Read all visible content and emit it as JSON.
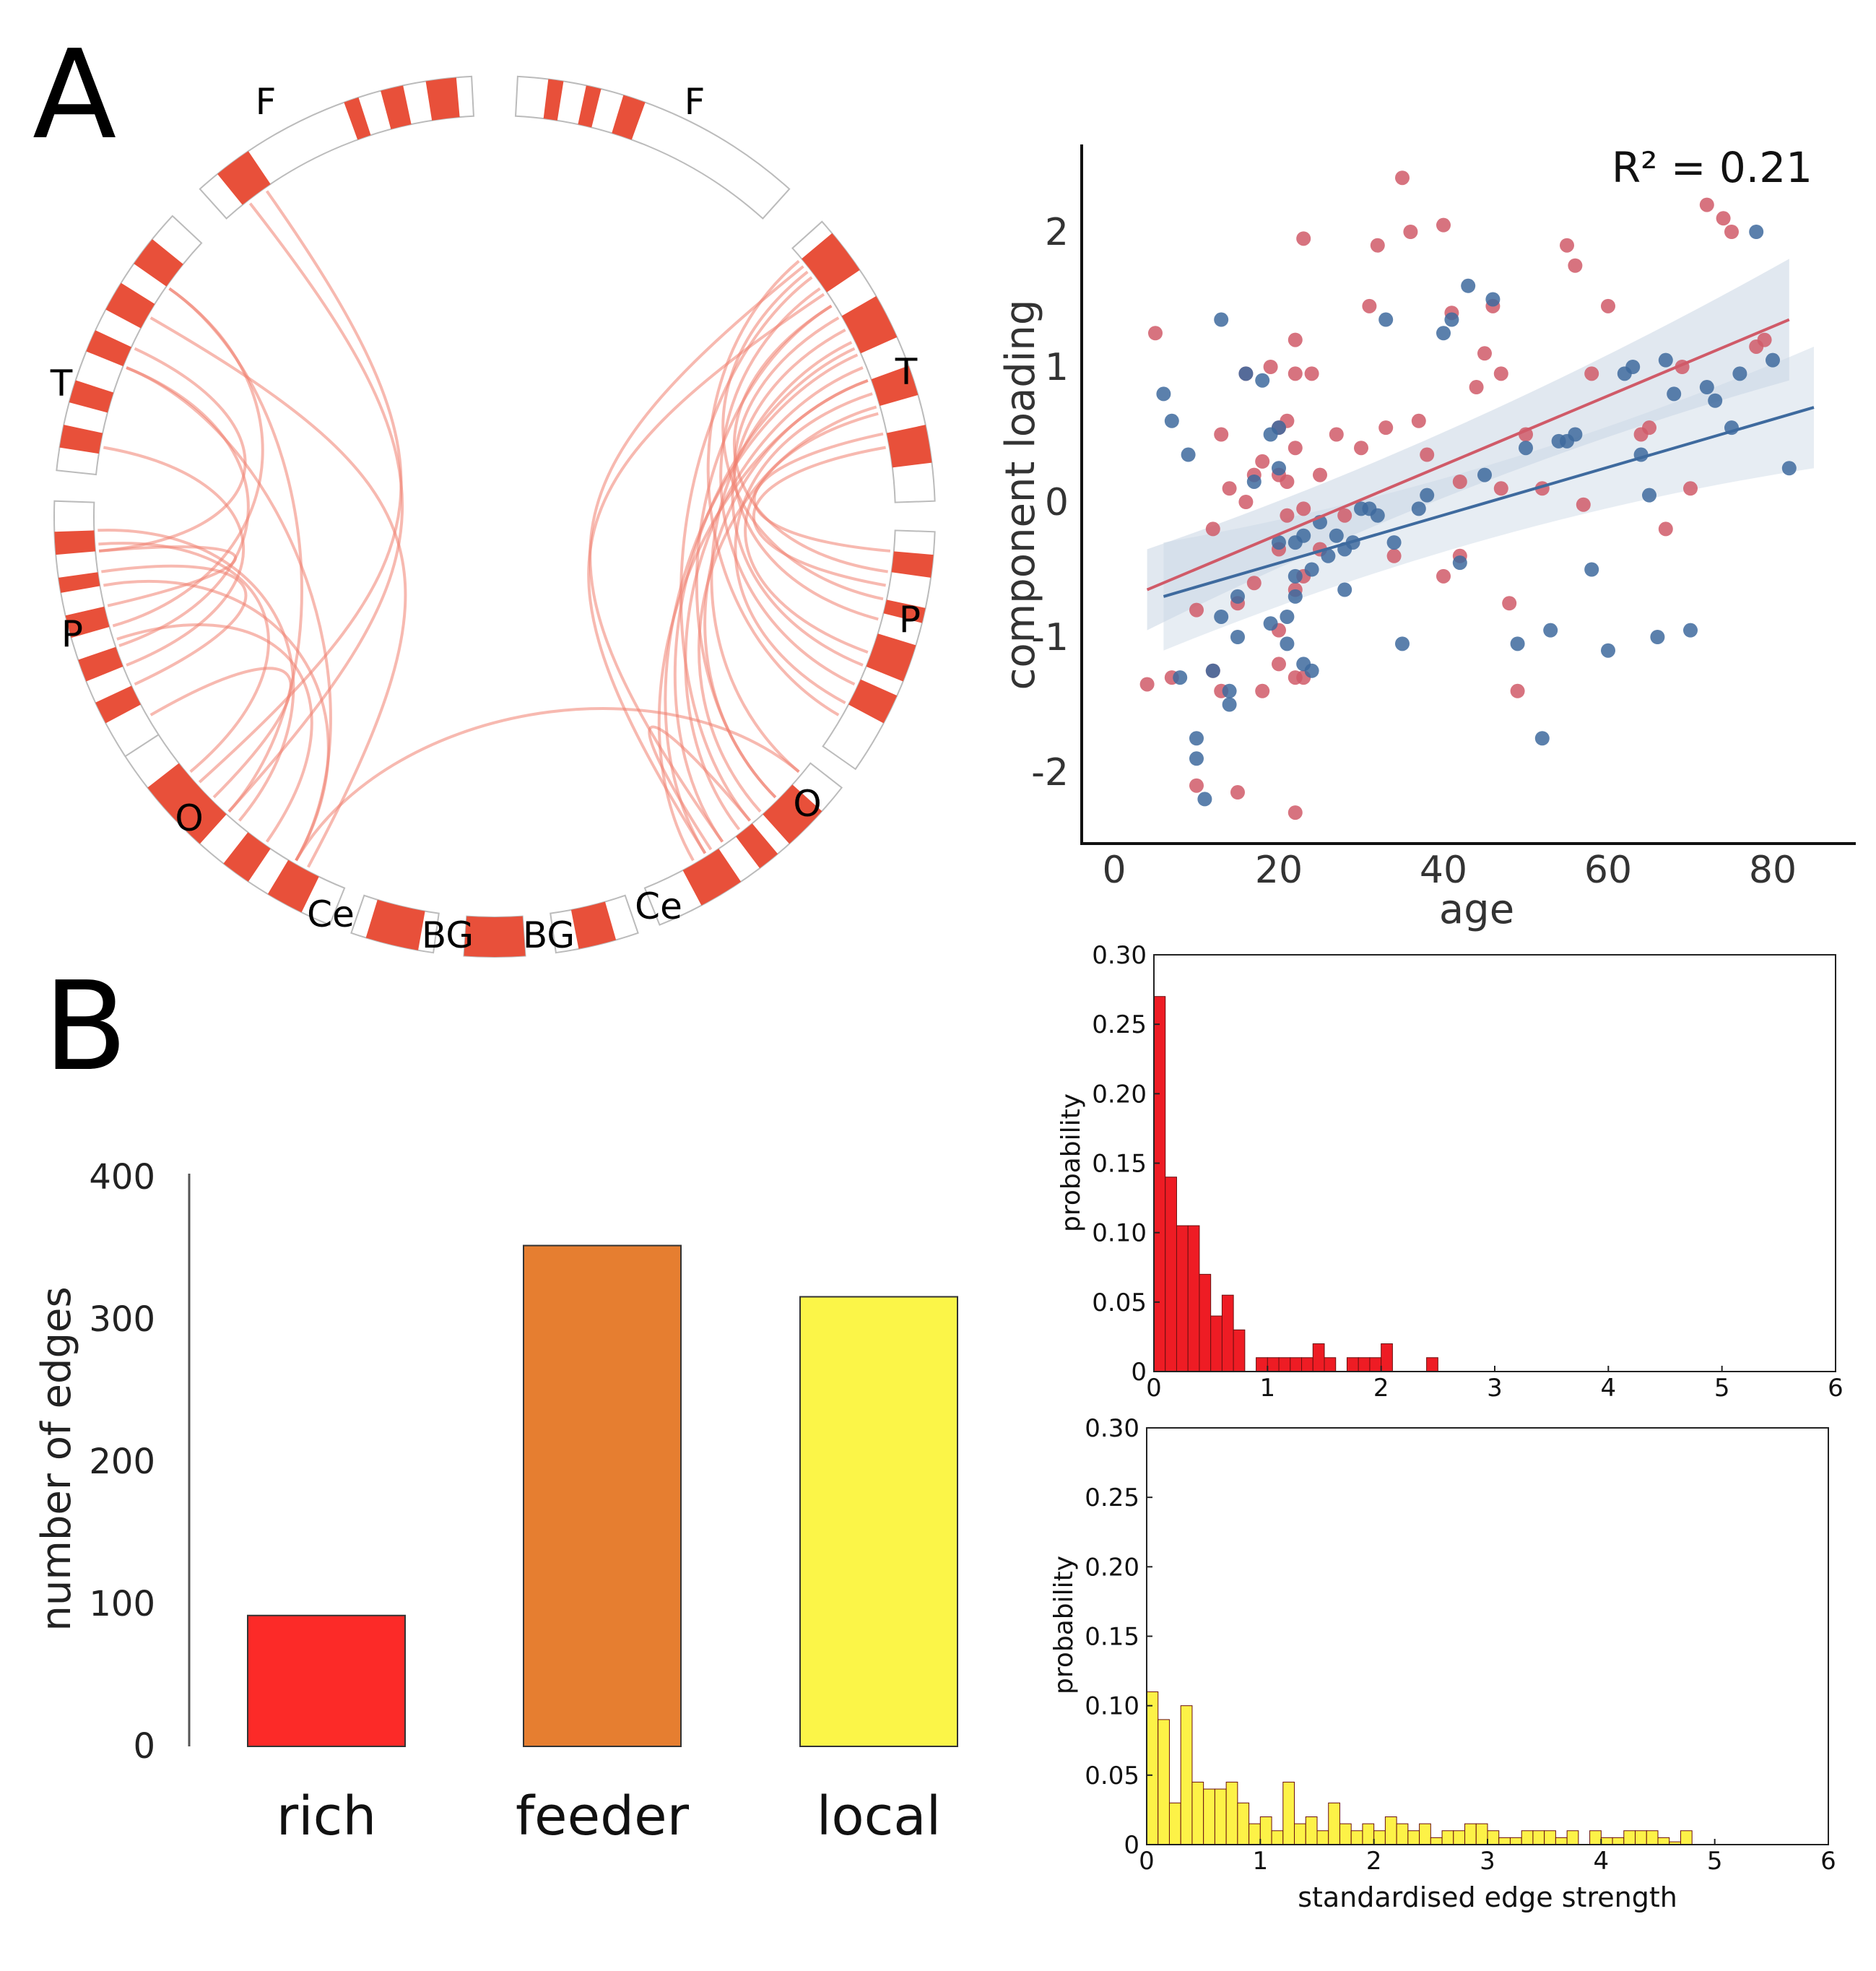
{
  "panel_labels": {
    "a": "A",
    "b": "B"
  },
  "circos": {
    "left_labels": [
      "F",
      "T",
      "P",
      "O",
      "Ce",
      "BG"
    ],
    "right_labels": [
      "F",
      "T",
      "P",
      "O",
      "Ce",
      "BG"
    ],
    "colors": {
      "band": "#e8503a",
      "link": "#f08070",
      "segment_stroke": "#bbbbbb"
    }
  },
  "colors": {
    "red_series": "#d05a68",
    "blue_series": "#3e6a9e",
    "ci_band": "#c9d6e4",
    "rich": "#fc2a28",
    "feeder": "#e67e30",
    "local": "#fbf548",
    "hist_red": "#ee1c24",
    "hist_yellow": "#fdf247"
  },
  "chart_data": [
    {
      "type": "scatter",
      "xlabel": "age",
      "ylabel": "component loading",
      "annotation": "R² = 0.21",
      "xlim": [
        -5,
        90
      ],
      "ylim": [
        -2.5,
        2.6
      ],
      "xticks": [
        "0",
        "20",
        "40",
        "60",
        "80"
      ],
      "yticks": [
        "-2",
        "-1",
        "0",
        "1",
        "2"
      ],
      "series": [
        {
          "name": "red",
          "fit": {
            "x": [
              4,
              82
            ],
            "y": [
              -0.65,
              1.35
            ]
          },
          "x": [
            4,
            5,
            7,
            10,
            10,
            12,
            12,
            13,
            13,
            14,
            15,
            15,
            16,
            16,
            17,
            17,
            18,
            18,
            19,
            20,
            20,
            20,
            20,
            20,
            21,
            21,
            21,
            22,
            22,
            22,
            22,
            22,
            22,
            23,
            23,
            23,
            23,
            24,
            25,
            25,
            27,
            28,
            30,
            31,
            32,
            33,
            34,
            35,
            36,
            37,
            38,
            40,
            40,
            41,
            42,
            42,
            44,
            45,
            46,
            47,
            47,
            48,
            49,
            50,
            52,
            55,
            56,
            57,
            58,
            60,
            64,
            65,
            67,
            69,
            70,
            72,
            74,
            75,
            78,
            79
          ],
          "y": [
            -1.35,
            1.25,
            -1.3,
            -0.8,
            -2.1,
            -0.2,
            -1.25,
            0.5,
            -1.4,
            0.1,
            -2.15,
            -0.75,
            0.95,
            0,
            0.2,
            -0.6,
            -1.4,
            0.3,
            1.0,
            0.55,
            0.2,
            -0.35,
            -0.95,
            -1.2,
            0.6,
            0.15,
            -0.1,
            1.2,
            0.95,
            -0.65,
            -1.3,
            -2.3,
            0.4,
            1.95,
            -0.05,
            -0.55,
            -1.3,
            0.95,
            -0.35,
            0.2,
            0.5,
            -0.1,
            0.4,
            1.45,
            1.9,
            0.55,
            -0.4,
            2.4,
            2.0,
            0.6,
            0.35,
            2.05,
            -0.55,
            1.4,
            0.15,
            -0.4,
            0.85,
            1.1,
            1.45,
            0.95,
            0.1,
            -0.75,
            -1.4,
            0.5,
            0.1,
            1.9,
            1.75,
            -0.02,
            0.95,
            1.45,
            0.5,
            0.55,
            -0.2,
            1.0,
            0.1,
            2.2,
            2.1,
            2.0,
            1.15,
            1.2
          ]
        },
        {
          "name": "blue",
          "fit": {
            "x": [
              6,
              85
            ],
            "y": [
              -0.7,
              0.7
            ]
          },
          "x": [
            6,
            7,
            8,
            9,
            10,
            10,
            11,
            12,
            13,
            13,
            14,
            14,
            15,
            15,
            16,
            17,
            18,
            19,
            19,
            20,
            20,
            20,
            21,
            21,
            22,
            22,
            22,
            23,
            23,
            24,
            24,
            25,
            26,
            27,
            28,
            28,
            29,
            30,
            31,
            32,
            33,
            34,
            35,
            37,
            38,
            40,
            41,
            42,
            43,
            45,
            46,
            49,
            50,
            52,
            53,
            54,
            55,
            56,
            58,
            60,
            62,
            63,
            64,
            65,
            66,
            67,
            68,
            70,
            72,
            73,
            75,
            76,
            78,
            80,
            82
          ],
          "y": [
            0.8,
            0.6,
            -1.3,
            0.35,
            -1.75,
            -1.9,
            -2.2,
            -1.25,
            1.35,
            -0.85,
            -1.4,
            -1.5,
            -0.7,
            -1.0,
            0.95,
            0.15,
            0.9,
            -0.9,
            0.5,
            0.25,
            -0.3,
            0.55,
            -0.85,
            -1.05,
            -0.55,
            -0.3,
            -0.7,
            -1.2,
            -0.25,
            -1.25,
            -0.5,
            -0.15,
            -0.4,
            -0.25,
            -0.35,
            -0.65,
            -0.3,
            -0.05,
            -0.05,
            -0.1,
            1.35,
            -0.3,
            -1.05,
            -0.05,
            0.05,
            1.25,
            1.35,
            -0.45,
            1.6,
            0.2,
            1.5,
            -1.05,
            0.4,
            -1.75,
            -0.95,
            0.45,
            0.45,
            0.5,
            -0.5,
            -1.1,
            0.95,
            1.0,
            0.35,
            0.05,
            -1.0,
            1.05,
            0.8,
            -0.95,
            0.85,
            0.75,
            0.55,
            0.95,
            2.0,
            1.05,
            0.25
          ]
        }
      ]
    },
    {
      "type": "bar",
      "ylabel": "number of edges",
      "ylim": [
        0,
        400
      ],
      "yticks": [
        "0",
        "100",
        "200",
        "300",
        "400"
      ],
      "categories": [
        "rich",
        "feeder",
        "local"
      ],
      "values": [
        92,
        352,
        316
      ]
    },
    {
      "type": "bar",
      "subtype": "histogram",
      "xlabel": "",
      "ylabel": "probability",
      "xlim": [
        0,
        6
      ],
      "ylim": [
        0,
        0.3
      ],
      "xticks": [
        "0",
        "1",
        "2",
        "3",
        "4",
        "5",
        "6"
      ],
      "yticks": [
        "0",
        "0.05",
        "0.10",
        "0.15",
        "0.20",
        "0.25",
        "0.30"
      ],
      "bin_width": 0.1,
      "values": [
        0.27,
        0.14,
        0.105,
        0.105,
        0.07,
        0.04,
        0.055,
        0.03,
        0,
        0.01,
        0.01,
        0.01,
        0.01,
        0.01,
        0.02,
        0.01,
        0,
        0.01,
        0.01,
        0.01,
        0.02,
        0,
        0,
        0,
        0.01
      ]
    },
    {
      "type": "bar",
      "subtype": "histogram",
      "xlabel": "standardised edge strength",
      "ylabel": "probability",
      "xlim": [
        0,
        6
      ],
      "ylim": [
        0,
        0.3
      ],
      "xticks": [
        "0",
        "1",
        "2",
        "3",
        "4",
        "5",
        "6"
      ],
      "yticks": [
        "0",
        "0.05",
        "0.10",
        "0.15",
        "0.20",
        "0.25",
        "0.30"
      ],
      "bin_width": 0.1,
      "values": [
        0.11,
        0.09,
        0.03,
        0.1,
        0.045,
        0.04,
        0.04,
        0.045,
        0.03,
        0.015,
        0.02,
        0.01,
        0.045,
        0.015,
        0.02,
        0.01,
        0.03,
        0.015,
        0.01,
        0.015,
        0.01,
        0.02,
        0.015,
        0.01,
        0.015,
        0.005,
        0.01,
        0.01,
        0.015,
        0.015,
        0.01,
        0.005,
        0.005,
        0.01,
        0.01,
        0.01,
        0.005,
        0.01,
        0,
        0.01,
        0.005,
        0.005,
        0.01,
        0.01,
        0.01,
        0.005,
        0.002,
        0.01,
        0,
        0,
        0
      ]
    }
  ]
}
